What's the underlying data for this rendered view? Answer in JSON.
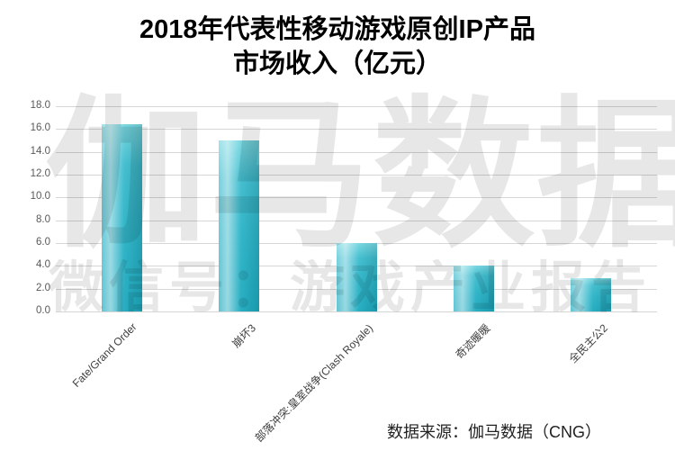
{
  "title": {
    "line1": "2018年代表性移动游戏原创IP产品",
    "line2": "市场收入（亿元）"
  },
  "watermark": {
    "line1": "伽马数据",
    "line2": "微信号：游戏产业报告"
  },
  "source": "数据来源：伽马数据（CNG）",
  "chart_data": {
    "type": "bar",
    "title": "2018年代表性移动游戏原创IP产品市场收入（亿元）",
    "categories": [
      "Fate/Grand Order",
      "崩坏3",
      "部落冲突:皇室战争(Clash Royale)",
      "奇迹暖暖",
      "全民主公2"
    ],
    "values": [
      16.4,
      15.0,
      6.0,
      4.0,
      2.9
    ],
    "unit": "亿元",
    "xlabel": "",
    "ylabel": "",
    "ylim": [
      0,
      18
    ],
    "ytick_step": 2,
    "ytick_labels": [
      "0.0",
      "2.0",
      "4.0",
      "6.0",
      "8.0",
      "10.0",
      "12.0",
      "14.0",
      "16.0",
      "18.0"
    ],
    "grid": true,
    "legend": false,
    "bar_color": "#29b3c7",
    "bar_highlight": "#74d6e0",
    "gridline_color": "#d6d6d6",
    "axis_label_color": "#595959",
    "watermark_color": "rgba(0,0,0,0.095)"
  }
}
